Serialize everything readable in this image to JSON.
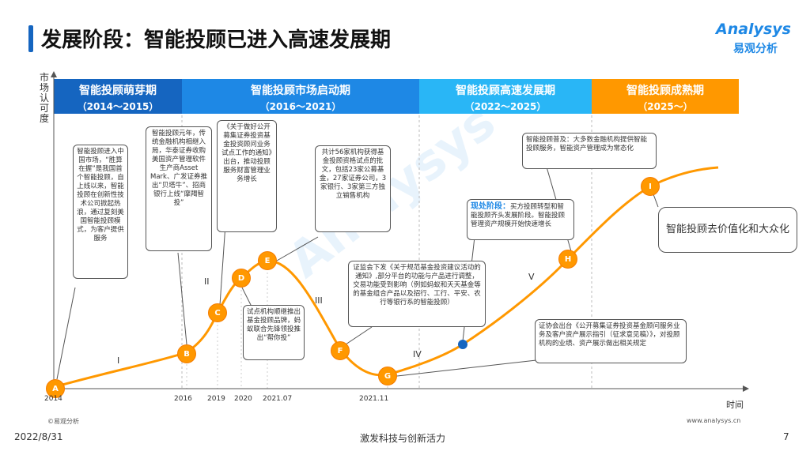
{
  "page": {
    "title": "发展阶段：智能投顾已进入高速发展期"
  },
  "logo": {
    "en": "Analysys",
    "cn": "易观分析"
  },
  "axes": {
    "y_label": "市场认可度",
    "x_label": "时间"
  },
  "phases": [
    {
      "name": "智能投顾萌芽期",
      "years": "（2014～2015）",
      "color": "#1565c0"
    },
    {
      "name": "智能投顾市场启动期",
      "years": "（2016～2021）",
      "color": "#1e88e5"
    },
    {
      "name": "智能投顾高速发展期",
      "years": "（2022～2025）",
      "color": "#29b6f6"
    },
    {
      "name": "智能投顾成熟期",
      "years": "（2025～）",
      "color": "#ff9800"
    }
  ],
  "nodes": [
    "A",
    "B",
    "C",
    "D",
    "E",
    "F",
    "G",
    "H",
    "I"
  ],
  "romans": [
    "I",
    "II",
    "III",
    "IV",
    "V"
  ],
  "x_ticks": [
    "2014",
    "2016",
    "2019",
    "2020",
    "2021.07",
    "2021.11"
  ],
  "callouts": {
    "a": "智能投顾进入中国市场，“胜算在握”是我国首个智能投顾，自上线以来，智能投顾在创新性技术公司掀起热浪，通过复刻美国智能投顾模式，为客户提供服务",
    "b": "智能投顾元年，传统金融机构相继入局，华泰证券收购美国资产管理软件生产商Asset Mark、广发证券推出“贝塔牛”、招商银行上线“摩羯智投”",
    "c": "《关于做好公开募集证券投资基金投资顾问业务试点工作的通知》出台，推动投顾服务财富管理业务增长",
    "d": "试点机构顺继推出基金投顾品牌，蚂蚁联合先锋领投推出“帮你投”",
    "e": "共计56家机构获得基金投顾资格试点的批文，包括23家公募基金，27家证券公司，3家银行、3家第三方独立销售机构",
    "f": "证监会下发《关于规范基金投资建议活动的通知》,部分平台的功能与产品进行调整，交易功能受到影响（例如蚂蚁和天天基金等的基金组合产品以及招行、工行、平安、农行等银行系的智能投顾）",
    "current_title": "现处阶段：",
    "current_body": "买方投顾转型和智能投顾齐头发展阶段。智能投顾管理资产规模开始快速增长",
    "h": "智能投顾普及：大多数金融机构提供智能投顾服务，智能资产管理成为常态化",
    "g": "证协会出台《公开募集证券投资基金顾问服务业务及客户资产展示指引（征求意见稿）》，对投顾机构的业绩、资产展示做出相关规定"
  },
  "big_label": "智能投顾去价值化和大众化",
  "footer": {
    "copyright": "©易观分析",
    "url": "www.analysys.cn",
    "date": "2022/8/31",
    "slogan": "激发科技与创新活力",
    "page_number": "7"
  },
  "colors": {
    "curve": "#ff9800",
    "node": "#ff9800",
    "marker": "#1565c0",
    "accent": "#1e88e5"
  }
}
